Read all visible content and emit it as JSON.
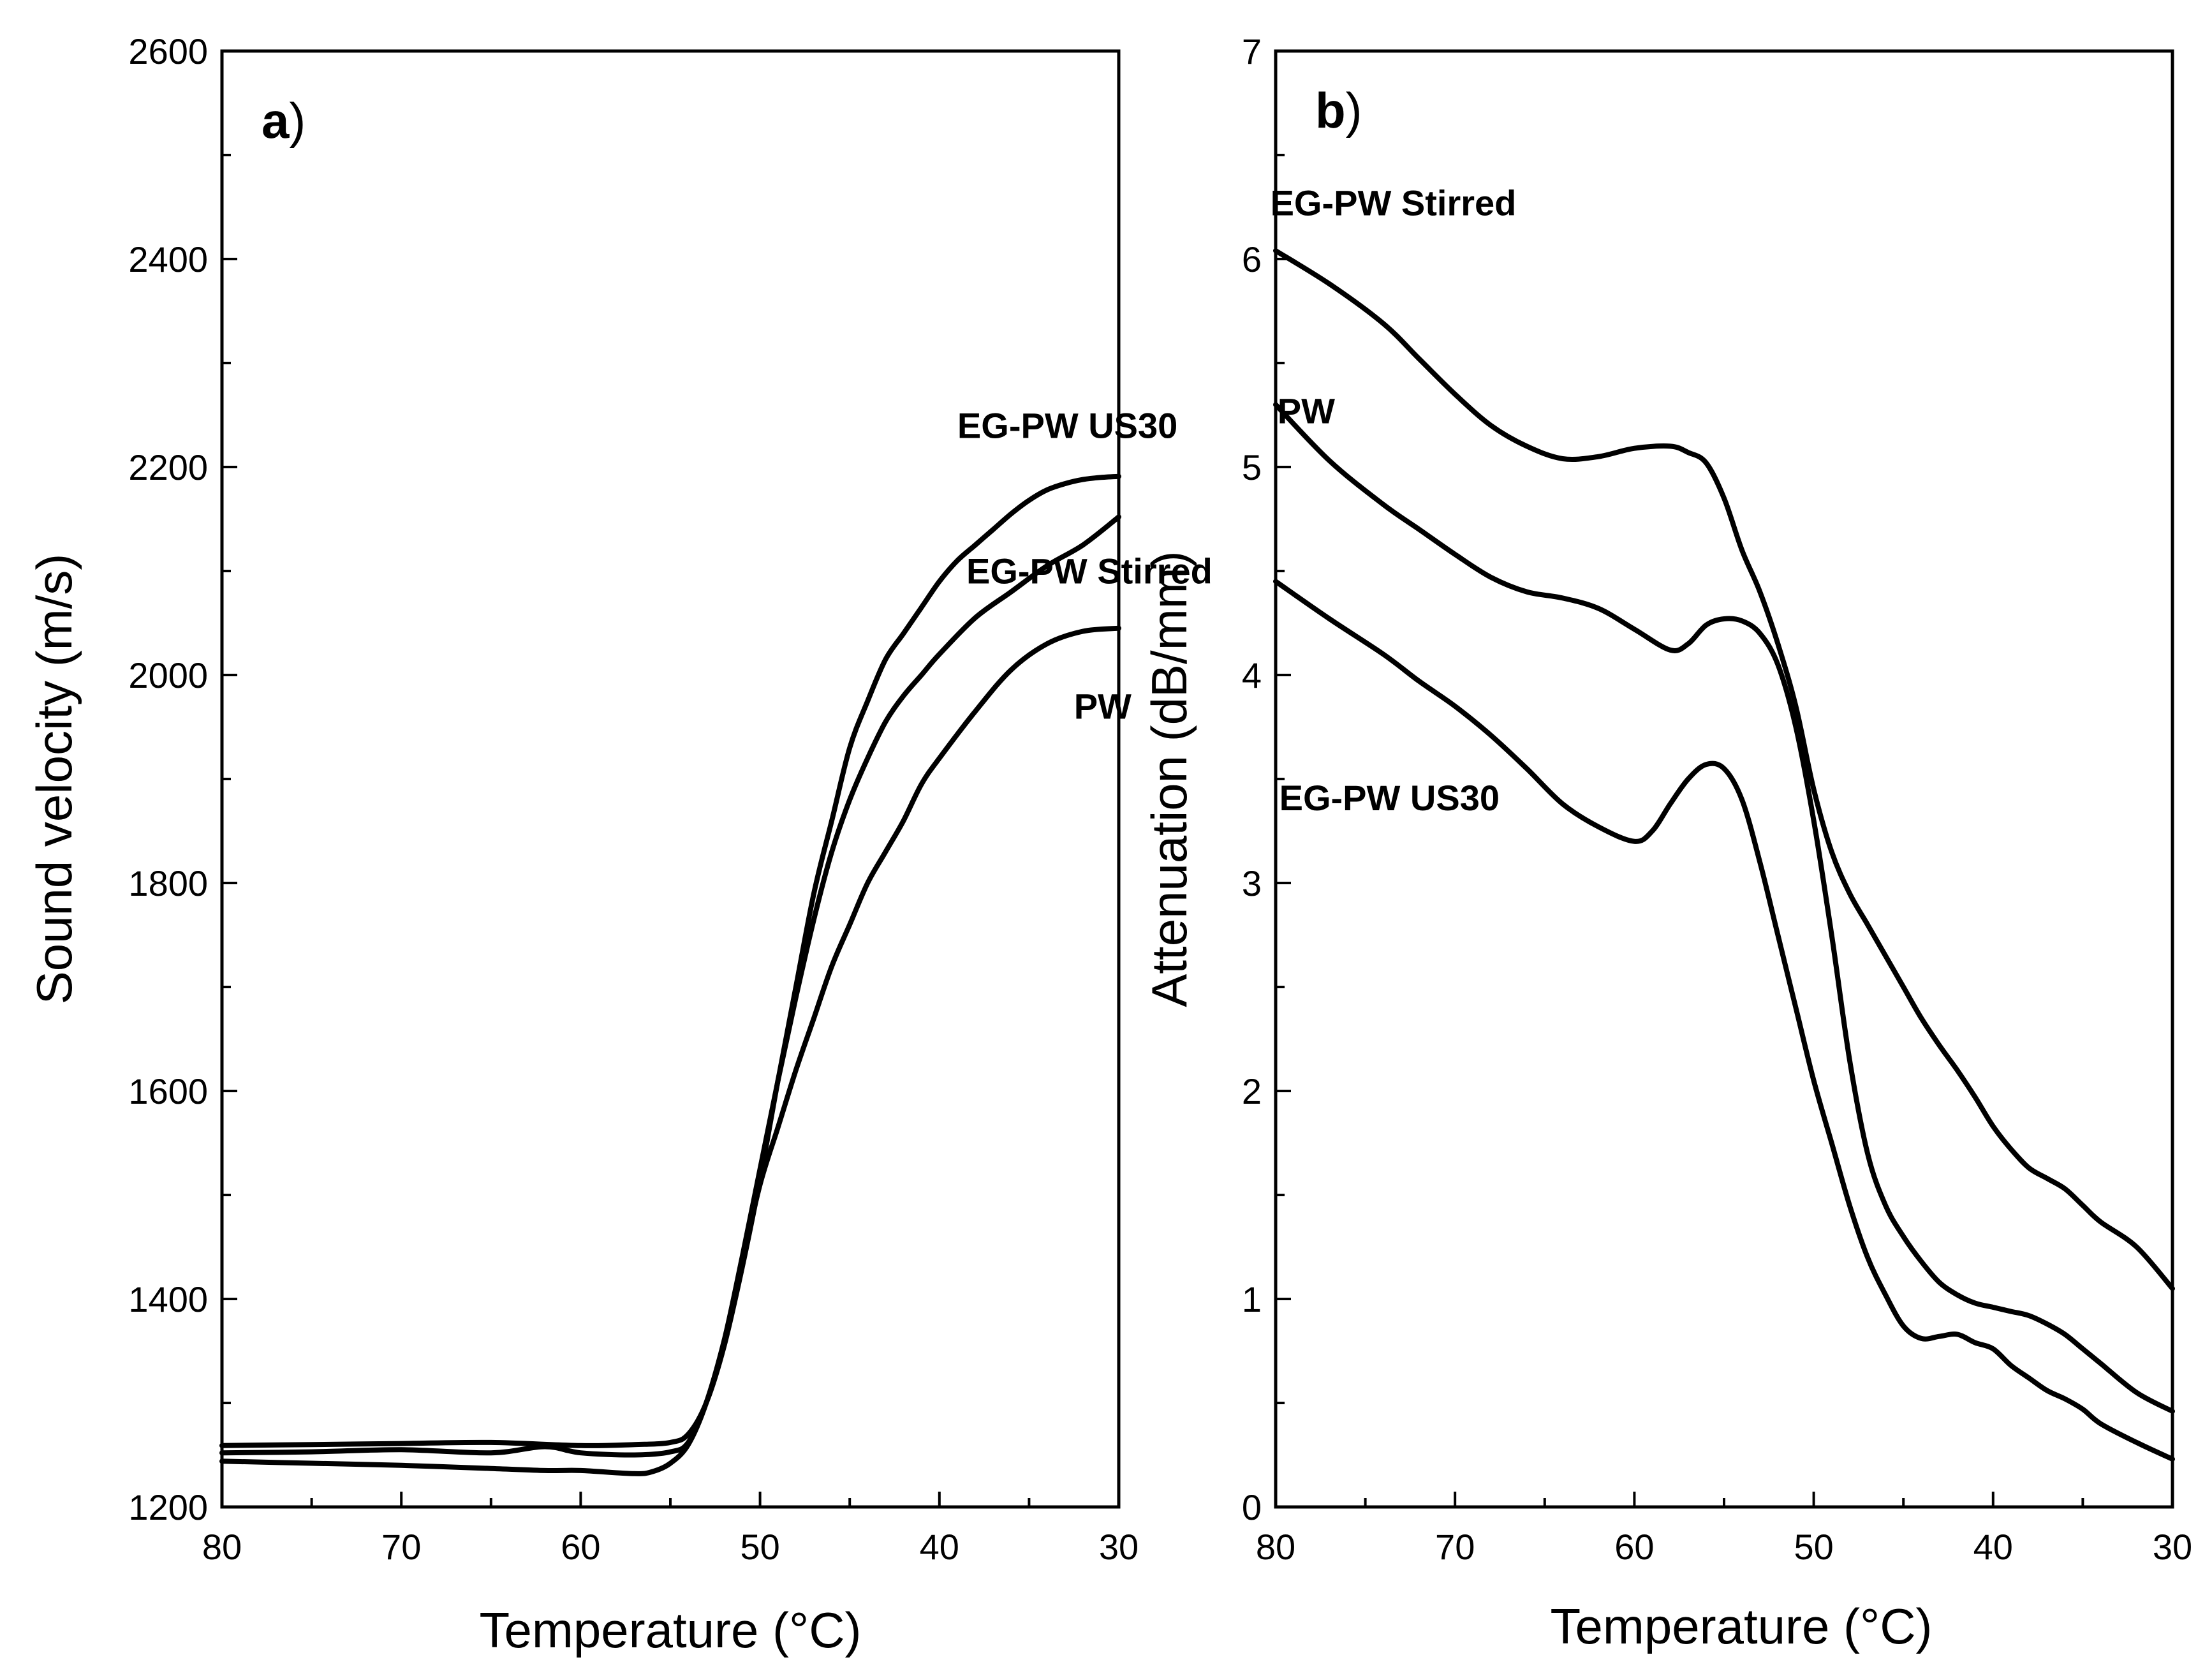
{
  "chart_data": [
    {
      "type": "line",
      "panel_label": "a",
      "panel_paren": ")",
      "xlabel": "Temperature (°C)",
      "ylabel": "Sound velocity (m/s)",
      "xlim": [
        80,
        30
      ],
      "ylim": [
        1200,
        2600
      ],
      "x_ticks": [
        "80",
        "70",
        "60",
        "50",
        "40",
        "30"
      ],
      "y_ticks": [
        "1200",
        "1400",
        "1600",
        "1800",
        "2000",
        "2200",
        "2400",
        "2600"
      ],
      "grid": false,
      "legend": "none (series labelled directly on plot)",
      "series": [
        {
          "name": "EG-PW US30",
          "x": [
            80,
            75,
            70,
            65,
            60,
            57,
            55,
            54,
            53,
            52,
            51,
            50,
            49,
            48,
            47,
            46,
            45,
            44,
            43,
            42,
            41,
            40,
            39,
            38,
            37,
            36,
            35,
            34,
            33,
            32,
            31,
            30
          ],
          "y": [
            1259,
            1260,
            1261,
            1262,
            1259,
            1260,
            1262,
            1270,
            1300,
            1355,
            1430,
            1515,
            1610,
            1700,
            1790,
            1860,
            1930,
            1975,
            2015,
            2040,
            2065,
            2090,
            2110,
            2125,
            2140,
            2155,
            2168,
            2178,
            2184,
            2188,
            2190,
            2191
          ]
        },
        {
          "name": "EG-PW Stirred",
          "x": [
            80,
            75,
            70,
            65,
            62,
            60,
            57,
            55,
            54,
            53,
            52,
            51,
            50,
            49,
            48,
            47,
            46,
            45,
            44,
            43,
            42,
            41,
            40,
            38,
            36,
            34,
            32,
            30
          ],
          "y": [
            1252,
            1253,
            1255,
            1252,
            1258,
            1252,
            1250,
            1253,
            1262,
            1300,
            1360,
            1440,
            1525,
            1610,
            1690,
            1765,
            1830,
            1880,
            1920,
            1955,
            1980,
            2000,
            2020,
            2055,
            2080,
            2105,
            2125,
            2152
          ]
        },
        {
          "name": "PW",
          "x": [
            80,
            75,
            70,
            65,
            62,
            60,
            57,
            56,
            55,
            54,
            53,
            52,
            51,
            50,
            49,
            48,
            47,
            46,
            45,
            44,
            43,
            42,
            41,
            40,
            38,
            36,
            34,
            32,
            30
          ],
          "y": [
            1244,
            1242,
            1240,
            1237,
            1235,
            1235,
            1232,
            1234,
            1242,
            1260,
            1300,
            1360,
            1435,
            1510,
            1565,
            1620,
            1670,
            1720,
            1760,
            1800,
            1830,
            1860,
            1895,
            1920,
            1965,
            2005,
            2030,
            2042,
            2045
          ]
        }
      ],
      "annotations": [
        {
          "text": "EG-PW US30",
          "x": 39,
          "y": 2228
        },
        {
          "text": "EG-PW Stirred",
          "x": 38.5,
          "y": 2088
        },
        {
          "text": "PW",
          "x": 32.5,
          "y": 1958
        }
      ]
    },
    {
      "type": "line",
      "panel_label": "b",
      "panel_paren": ")",
      "xlabel": "Temperature (°C)",
      "ylabel": "Attenuation (dB/mm)",
      "xlim": [
        80,
        30
      ],
      "ylim": [
        0,
        7
      ],
      "x_ticks": [
        "80",
        "70",
        "60",
        "50",
        "40",
        "30"
      ],
      "y_ticks": [
        "0",
        "1",
        "2",
        "3",
        "4",
        "5",
        "6",
        "7"
      ],
      "grid": false,
      "legend": "none (series labelled directly on plot)",
      "series": [
        {
          "name": "EG-PW Stirred",
          "x": [
            80,
            77,
            74,
            72,
            70,
            68,
            66,
            64,
            62,
            60,
            58,
            57,
            56,
            55,
            54,
            53,
            52,
            51,
            50,
            49,
            48,
            47,
            46,
            45,
            44,
            43,
            42,
            41,
            40,
            39,
            38,
            37,
            36,
            35,
            34,
            32,
            30
          ],
          "y": [
            6.04,
            5.88,
            5.69,
            5.52,
            5.35,
            5.2,
            5.1,
            5.04,
            5.05,
            5.09,
            5.1,
            5.07,
            5.02,
            4.85,
            4.6,
            4.4,
            4.15,
            3.85,
            3.45,
            3.15,
            2.95,
            2.8,
            2.65,
            2.5,
            2.35,
            2.22,
            2.1,
            1.97,
            1.83,
            1.72,
            1.63,
            1.58,
            1.53,
            1.45,
            1.37,
            1.25,
            1.05
          ]
        },
        {
          "name": "PW",
          "x": [
            80,
            77,
            74,
            72,
            70,
            68,
            66,
            64,
            62,
            60,
            58,
            57,
            56,
            55,
            54,
            53,
            52,
            51,
            50,
            49,
            48,
            47,
            46,
            45,
            44,
            43,
            42,
            41,
            40,
            39,
            38,
            37,
            36,
            35,
            34,
            32,
            30
          ],
          "y": [
            5.3,
            5.03,
            4.82,
            4.7,
            4.58,
            4.47,
            4.4,
            4.37,
            4.32,
            4.22,
            4.12,
            4.15,
            4.24,
            4.27,
            4.26,
            4.2,
            4.05,
            3.75,
            3.3,
            2.75,
            2.15,
            1.7,
            1.45,
            1.3,
            1.18,
            1.08,
            1.02,
            0.98,
            0.96,
            0.94,
            0.92,
            0.88,
            0.83,
            0.76,
            0.69,
            0.55,
            0.46
          ]
        },
        {
          "name": "EG-PW US30",
          "x": [
            80,
            77,
            74,
            72,
            70,
            68,
            66,
            64,
            62,
            60,
            59,
            58,
            57,
            56,
            55,
            54,
            53,
            52,
            51,
            50,
            49,
            48,
            47,
            46,
            45,
            44,
            43,
            42,
            41,
            40,
            39,
            38,
            37,
            36,
            35,
            34,
            32,
            30
          ],
          "y": [
            4.45,
            4.27,
            4.1,
            3.97,
            3.85,
            3.71,
            3.55,
            3.38,
            3.27,
            3.2,
            3.25,
            3.38,
            3.5,
            3.57,
            3.55,
            3.4,
            3.1,
            2.75,
            2.4,
            2.05,
            1.75,
            1.45,
            1.2,
            1.02,
            0.87,
            0.81,
            0.82,
            0.83,
            0.79,
            0.76,
            0.68,
            0.62,
            0.56,
            0.52,
            0.47,
            0.4,
            0.31,
            0.23
          ]
        }
      ],
      "annotations": [
        {
          "text": "EG-PW Stirred",
          "x": 80.3,
          "y": 6.21
        },
        {
          "text": "PW",
          "x": 79.9,
          "y": 5.21
        },
        {
          "text": "EG-PW US30",
          "x": 79.8,
          "y": 3.35
        }
      ]
    }
  ]
}
